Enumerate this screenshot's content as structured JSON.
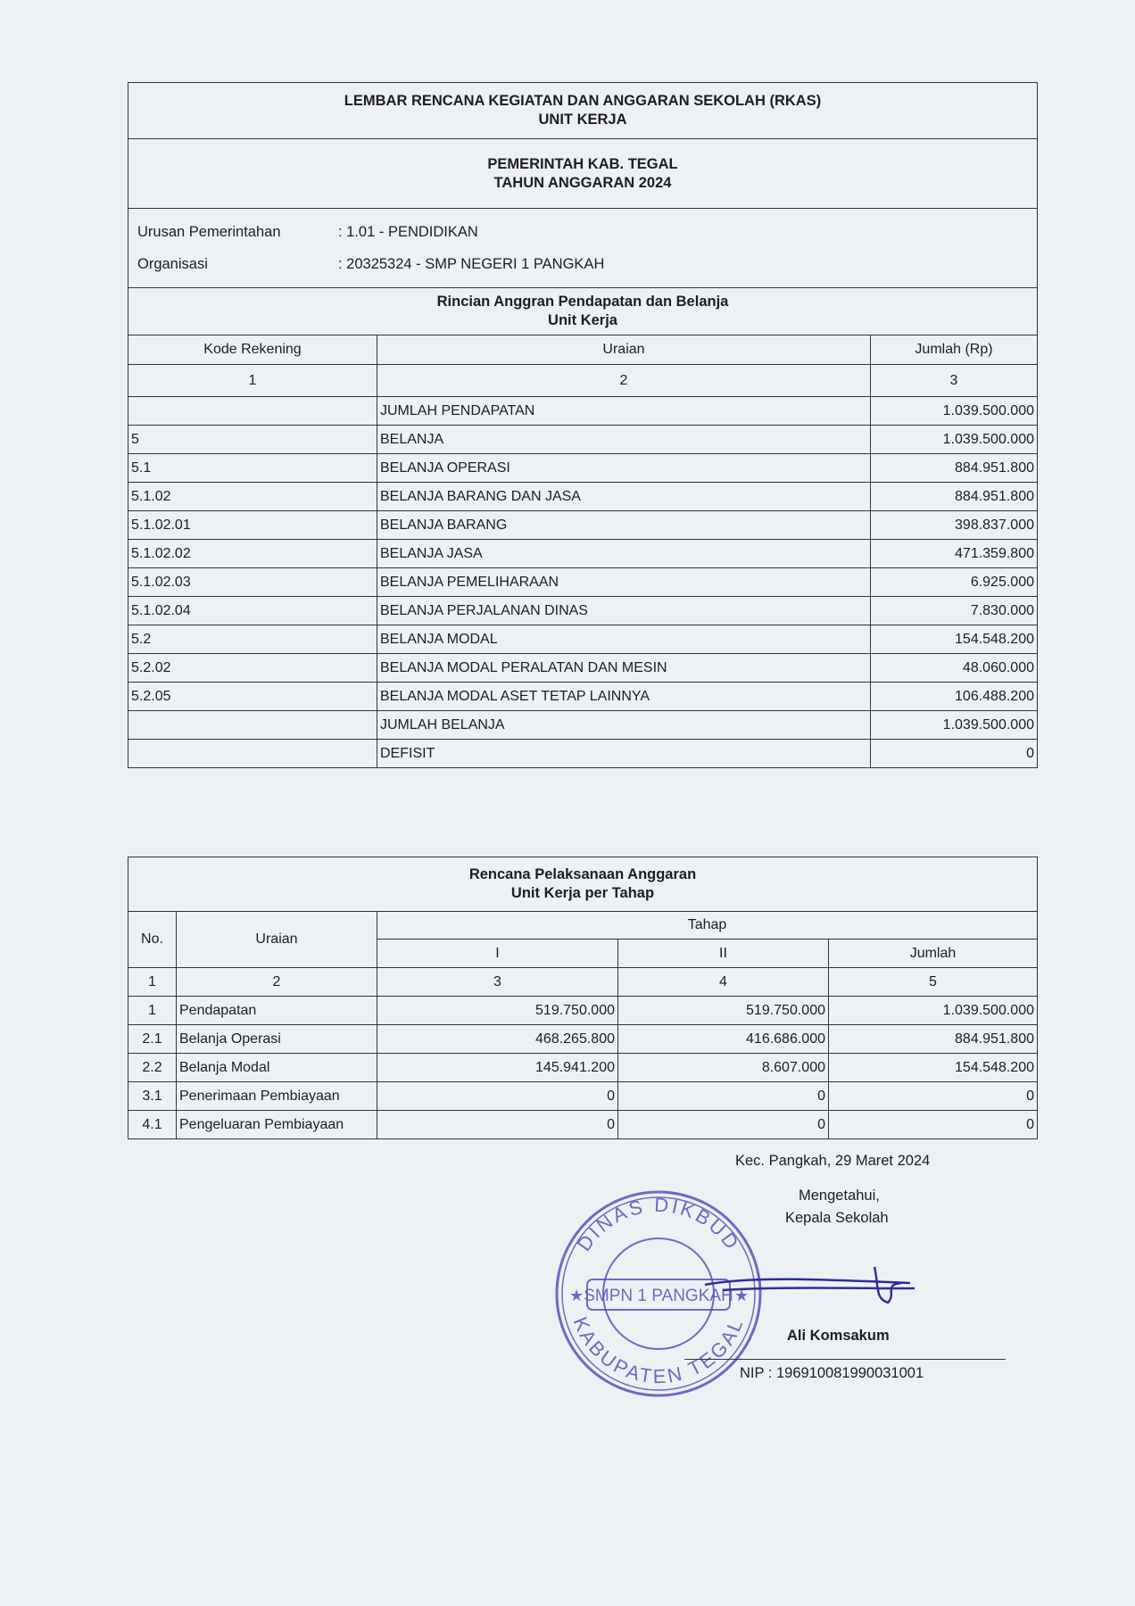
{
  "header": {
    "title_line1": "LEMBAR RENCANA KEGIATAN DAN ANGGARAN SEKOLAH (RKAS)",
    "title_line2": "UNIT KERJA",
    "gov_line1": "PEMERINTAH KAB. TEGAL",
    "gov_line2": "TAHUN ANGGARAN 2024"
  },
  "info": [
    {
      "label": "Urusan Pemerintahan",
      "value": ": 1.01 - PENDIDIKAN"
    },
    {
      "label": "Organisasi",
      "value": ": 20325324 - SMP NEGERI 1 PANGKAH"
    }
  ],
  "rincian": {
    "title_line1": "Rincian Anggran Pendapatan dan Belanja",
    "title_line2": "Unit Kerja",
    "columns": [
      "Kode Rekening",
      "Uraian",
      "Jumlah (Rp)"
    ],
    "column_numbers": [
      "1",
      "2",
      "3"
    ],
    "rows": [
      {
        "kode": "",
        "uraian": "JUMLAH PENDAPATAN",
        "jumlah": "1.039.500.000"
      },
      {
        "kode": "5",
        "uraian": "BELANJA",
        "jumlah": "1.039.500.000"
      },
      {
        "kode": "5.1",
        "uraian": "BELANJA OPERASI",
        "jumlah": "884.951.800"
      },
      {
        "kode": "5.1.02",
        "uraian": "BELANJA BARANG DAN JASA",
        "jumlah": "884.951.800"
      },
      {
        "kode": "5.1.02.01",
        "uraian": "BELANJA BARANG",
        "jumlah": "398.837.000"
      },
      {
        "kode": "5.1.02.02",
        "uraian": "BELANJA JASA",
        "jumlah": "471.359.800"
      },
      {
        "kode": "5.1.02.03",
        "uraian": "BELANJA PEMELIHARAAN",
        "jumlah": "6.925.000"
      },
      {
        "kode": "5.1.02.04",
        "uraian": "BELANJA PERJALANAN DINAS",
        "jumlah": "7.830.000"
      },
      {
        "kode": "5.2",
        "uraian": "BELANJA MODAL",
        "jumlah": "154.548.200"
      },
      {
        "kode": "5.2.02",
        "uraian": "BELANJA MODAL PERALATAN DAN MESIN",
        "jumlah": "48.060.000"
      },
      {
        "kode": "5.2.05",
        "uraian": "BELANJA MODAL ASET TETAP LAINNYA",
        "jumlah": "106.488.200"
      },
      {
        "kode": "",
        "uraian": "JUMLAH BELANJA",
        "jumlah": "1.039.500.000"
      },
      {
        "kode": "",
        "uraian": "DEFISIT",
        "jumlah": "0"
      }
    ]
  },
  "pelaksanaan": {
    "title_line1": "Rencana Pelaksanaan Anggaran",
    "title_line2": "Unit Kerja per Tahap",
    "col_no": "No.",
    "col_uraian": "Uraian",
    "col_tahap": "Tahap",
    "tahap_cols": [
      "I",
      "II",
      "Jumlah"
    ],
    "column_numbers": [
      "1",
      "2",
      "3",
      "4",
      "5"
    ],
    "rows": [
      {
        "no": "1",
        "uraian": "Pendapatan",
        "t1": "519.750.000",
        "t2": "519.750.000",
        "jumlah": "1.039.500.000"
      },
      {
        "no": "2.1",
        "uraian": "Belanja Operasi",
        "t1": "468.265.800",
        "t2": "416.686.000",
        "jumlah": "884.951.800"
      },
      {
        "no": "2.2",
        "uraian": "Belanja Modal",
        "t1": "145.941.200",
        "t2": "8.607.000",
        "jumlah": "154.548.200"
      },
      {
        "no": "3.1",
        "uraian": "Penerimaan Pembiayaan",
        "t1": "0",
        "t2": "0",
        "jumlah": "0"
      },
      {
        "no": "4.1",
        "uraian": "Pengeluaran Pembiayaan",
        "t1": "0",
        "t2": "0",
        "jumlah": "0"
      }
    ]
  },
  "signature": {
    "place_date": "Kec. Pangkah, 29 Maret 2024",
    "acknowledge": "Mengetahui,",
    "position": "Kepala Sekolah",
    "name": "Ali Komsakum",
    "nip": "NIP : 196910081990031001"
  },
  "stamp": {
    "top_text": "DINAS DIKBUD",
    "center_text": "SMPN 1 PANGKAH",
    "bottom_text": "KABUPATEN TEGAL",
    "color": "#5a4fc0"
  }
}
